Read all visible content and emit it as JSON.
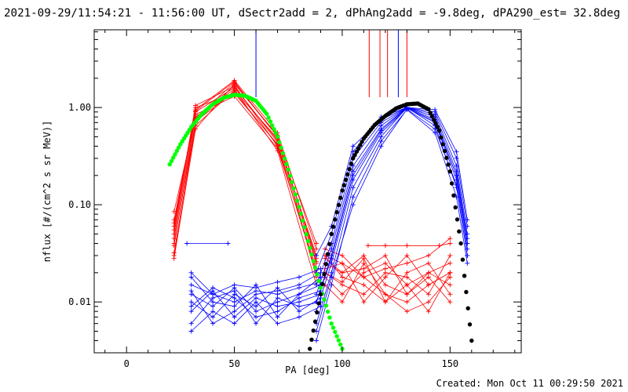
{
  "chart_data": {
    "type": "line",
    "title": "2021-09-29/11:54:21 - 11:56:00 UT, dSectr2add = 2, dPhAng2add = -9.8deg, dPA290_est= 32.8deg",
    "xlabel": "PA [deg]",
    "ylabel": "nflux [#/(cm^2 s sr MeV)]",
    "xlim": [
      -15,
      183
    ],
    "ylim": [
      0.003,
      6.3
    ],
    "y_scale": "log",
    "x_ticks": [
      0,
      50,
      100,
      150
    ],
    "y_ticks": [
      {
        "value": 1.0,
        "label": "1.00"
      },
      {
        "value": 0.1,
        "label": "0.10"
      },
      {
        "value": 0.01,
        "label": "0.01"
      }
    ],
    "footer": "Created: Mon Oct 11 00:29:50 2021",
    "colors": {
      "red": "#ff0000",
      "blue": "#0000ff",
      "green": "#00ff00",
      "black": "#000000"
    },
    "marker_lines": [
      {
        "x": 60,
        "color": "#0000ff"
      },
      {
        "x": 112.5,
        "color": "#ff0000"
      },
      {
        "x": 117.5,
        "color": "#ff0000"
      },
      {
        "x": 121,
        "color": "#ff0000"
      },
      {
        "x": 126,
        "color": "#0000ff"
      },
      {
        "x": 130,
        "color": "#ff0000"
      }
    ],
    "fits": [
      {
        "color": "#00ff00",
        "x": [
          20,
          25,
          30,
          35,
          40,
          45,
          50,
          55,
          60,
          65,
          70,
          75,
          80,
          85,
          90,
          95,
          100
        ],
        "y": [
          0.26,
          0.42,
          0.63,
          0.86,
          1.08,
          1.26,
          1.35,
          1.32,
          1.17,
          0.86,
          0.5,
          0.23,
          0.095,
          0.036,
          0.014,
          0.006,
          0.0033
        ]
      },
      {
        "color": "#000000",
        "x": [
          85,
          90,
          95,
          100,
          105,
          110,
          115,
          120,
          125,
          130,
          135,
          140,
          145,
          150,
          155,
          160
        ],
        "y": [
          0.0033,
          0.012,
          0.05,
          0.14,
          0.3,
          0.48,
          0.66,
          0.82,
          0.98,
          1.08,
          1.1,
          0.96,
          0.58,
          0.22,
          0.04,
          0.004
        ]
      }
    ],
    "series": [
      {
        "color": "#ff0000",
        "x": [
          22,
          32,
          50,
          70,
          88
        ],
        "y": [
          [
            0.085,
            0.78,
            1.8,
            0.5,
            0.04
          ],
          [
            0.07,
            0.9,
            1.6,
            0.46,
            0.03
          ],
          [
            0.06,
            1.0,
            1.4,
            0.42,
            0.025
          ],
          [
            0.05,
            0.95,
            1.9,
            0.55,
            0.035
          ],
          [
            0.04,
            0.7,
            1.7,
            0.4,
            0.02
          ],
          [
            0.032,
            0.65,
            1.5,
            0.48,
            0.028
          ],
          [
            0.045,
            0.85,
            1.3,
            0.38,
            0.022
          ],
          [
            0.028,
            0.6,
            1.75,
            0.52,
            0.018
          ],
          [
            0.055,
            1.05,
            1.65,
            0.44,
            0.03
          ],
          [
            0.038,
            0.8,
            1.55,
            0.36,
            0.015
          ],
          [
            0.065,
            0.92,
            1.85,
            0.5,
            0.026
          ],
          [
            0.03,
            0.72,
            1.45,
            0.41,
            0.02
          ]
        ]
      },
      {
        "color": "#ff0000",
        "x": [
          92,
          100,
          110,
          120,
          130,
          140,
          150
        ],
        "y": [
          [
            0.03,
            0.025,
            0.018,
            0.012,
            0.01,
            0.015,
            0.02
          ],
          [
            0.025,
            0.02,
            0.03,
            0.015,
            0.012,
            0.02,
            0.025
          ],
          [
            0.02,
            0.015,
            0.012,
            0.02,
            0.018,
            0.012,
            0.03
          ],
          [
            0.018,
            0.012,
            0.02,
            0.025,
            0.015,
            0.02,
            0.015
          ],
          [
            0.03,
            0.018,
            0.015,
            0.01,
            0.02,
            0.025,
            0.012
          ],
          [
            0.022,
            0.025,
            0.01,
            0.018,
            0.03,
            0.015,
            0.02
          ],
          [
            0.015,
            0.01,
            0.025,
            0.012,
            0.008,
            0.01,
            0.018
          ],
          [
            0.028,
            0.02,
            0.022,
            0.03,
            0.012,
            0.018,
            0.01
          ],
          [
            0.035,
            0.03,
            0.018,
            0.022,
            0.025,
            0.03,
            0.045
          ],
          [
            0.02,
            0.016,
            0.028,
            0.01,
            0.015,
            0.008,
            0.02
          ]
        ]
      },
      {
        "color": "#ff0000",
        "x": [
          112,
          120,
          130,
          145,
          150
        ],
        "y": [
          [
            0.038,
            0.038,
            0.038,
            0.038,
            0.04
          ]
        ]
      },
      {
        "color": "#0000ff",
        "x": [
          30,
          40,
          50,
          60,
          70,
          80,
          90
        ],
        "y": [
          [
            0.015,
            0.012,
            0.01,
            0.013,
            0.012,
            0.014,
            0.016
          ],
          [
            0.012,
            0.009,
            0.014,
            0.008,
            0.01,
            0.012,
            0.015
          ],
          [
            0.008,
            0.013,
            0.007,
            0.011,
            0.009,
            0.01,
            0.012
          ],
          [
            0.01,
            0.007,
            0.012,
            0.009,
            0.014,
            0.008,
            0.011
          ],
          [
            0.018,
            0.01,
            0.009,
            0.015,
            0.007,
            0.012,
            0.018
          ],
          [
            0.006,
            0.011,
            0.013,
            0.006,
            0.011,
            0.009,
            0.01
          ],
          [
            0.013,
            0.006,
            0.008,
            0.012,
            0.013,
            0.015,
            0.02
          ],
          [
            0.009,
            0.014,
            0.011,
            0.007,
            0.008,
            0.011,
            0.013
          ],
          [
            0.005,
            0.008,
            0.006,
            0.01,
            0.006,
            0.007,
            0.009
          ],
          [
            0.02,
            0.012,
            0.015,
            0.014,
            0.016,
            0.018,
            0.022
          ]
        ]
      },
      {
        "color": "#0000ff",
        "x": [
          28,
          47
        ],
        "y": [
          [
            0.04,
            0.04
          ]
        ]
      },
      {
        "color": "#0000ff",
        "x": [
          88,
          95,
          105,
          118,
          130,
          143,
          153,
          158
        ],
        "y": [
          [
            0.01,
            0.03,
            0.22,
            0.6,
            1.0,
            0.75,
            0.2,
            0.04
          ],
          [
            0.006,
            0.02,
            0.15,
            0.5,
            1.0,
            0.65,
            0.15,
            0.03
          ],
          [
            0.015,
            0.04,
            0.3,
            0.7,
            1.0,
            0.85,
            0.25,
            0.05
          ],
          [
            0.004,
            0.015,
            0.12,
            0.45,
            0.95,
            0.55,
            0.12,
            0.025
          ],
          [
            0.02,
            0.05,
            0.35,
            0.8,
            1.0,
            0.9,
            0.3,
            0.06
          ],
          [
            0.008,
            0.025,
            0.18,
            0.55,
            0.98,
            0.7,
            0.18,
            0.035
          ],
          [
            0.012,
            0.035,
            0.25,
            0.65,
            1.0,
            0.8,
            0.22,
            0.045
          ],
          [
            0.005,
            0.018,
            0.1,
            0.4,
            0.96,
            0.6,
            0.16,
            0.03
          ],
          [
            0.03,
            0.06,
            0.4,
            0.75,
            1.0,
            0.95,
            0.35,
            0.07
          ],
          [
            0.01,
            0.028,
            0.2,
            0.58,
            0.99,
            0.72,
            0.2,
            0.04
          ]
        ]
      }
    ]
  }
}
